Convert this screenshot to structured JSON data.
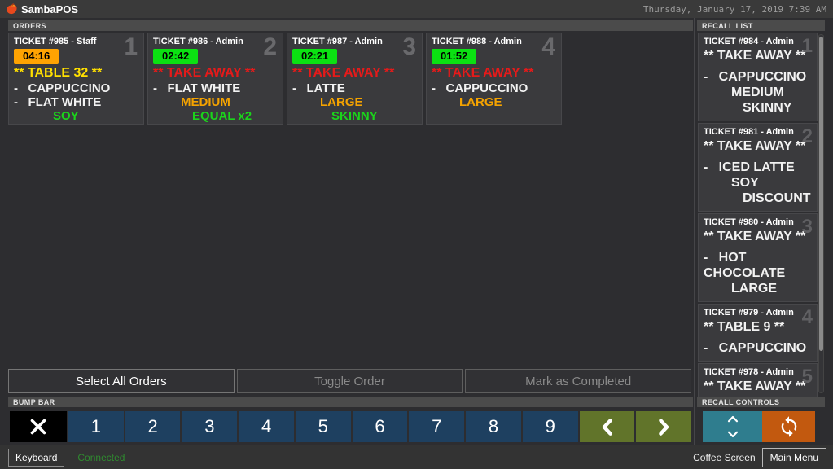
{
  "app": {
    "title": "SambaPOS",
    "datetime": "Thursday, January 17, 2019 7:39 AM"
  },
  "colors": {
    "white": "#F2F2F2",
    "yellow": "#FFDF00",
    "red": "#E51A1A",
    "orange": "#F5A300",
    "green": "#1BD41B",
    "timer_warn": "#FFA302",
    "timer_ok": "#0BE112",
    "bump_blue": "#1E4060",
    "bump_green": "#61742A",
    "recall_teal": "#2F7D8E",
    "recall_orange": "#C2590F"
  },
  "orders": {
    "header": "ORDERS",
    "tickets": [
      {
        "title": "TICKET #985 - Staff",
        "timer": "04:16",
        "timer_state": "warn",
        "number": "1",
        "lines": [
          {
            "text": "** TABLE 32 **",
            "type": "table",
            "color": "yellow"
          },
          {
            "text": "-   CAPPUCCINO",
            "type": "item",
            "color": "white"
          },
          {
            "text": "-   FLAT WHITE",
            "type": "item",
            "color": "white"
          },
          {
            "text": "SOY",
            "type": "tag2",
            "color": "green"
          }
        ]
      },
      {
        "title": "TICKET #986 - Admin",
        "timer": "02:42",
        "timer_state": "ok",
        "number": "2",
        "lines": [
          {
            "text": "** TAKE AWAY **",
            "type": "table",
            "color": "red"
          },
          {
            "text": "-   FLAT WHITE",
            "type": "item",
            "color": "white"
          },
          {
            "text": "MEDIUM",
            "type": "tag1",
            "color": "orange"
          },
          {
            "text": "EQUAL x2",
            "type": "tag2",
            "color": "green"
          }
        ]
      },
      {
        "title": "TICKET #987 - Admin",
        "timer": "02:21",
        "timer_state": "ok",
        "number": "3",
        "lines": [
          {
            "text": "** TAKE AWAY **",
            "type": "table",
            "color": "red"
          },
          {
            "text": "-   LATTE",
            "type": "item",
            "color": "white"
          },
          {
            "text": "LARGE",
            "type": "tag1",
            "color": "orange"
          },
          {
            "text": "SKINNY",
            "type": "tag2",
            "color": "green"
          }
        ]
      },
      {
        "title": "TICKET #988 - Admin",
        "timer": "01:52",
        "timer_state": "ok",
        "number": "4",
        "lines": [
          {
            "text": "** TAKE AWAY **",
            "type": "table",
            "color": "red"
          },
          {
            "text": "-   CAPPUCCINO",
            "type": "item",
            "color": "white"
          },
          {
            "text": "LARGE",
            "type": "tag1",
            "color": "orange"
          }
        ]
      }
    ],
    "actions": [
      {
        "label": "Select All Orders",
        "enabled": true
      },
      {
        "label": "Toggle Order",
        "enabled": false
      },
      {
        "label": "Mark as Completed",
        "enabled": false
      }
    ]
  },
  "recall": {
    "header": "RECALL LIST",
    "tickets": [
      {
        "title": "TICKET #984 - Admin",
        "number": "1",
        "lines": [
          {
            "text": "** TAKE AWAY **",
            "type": "table",
            "color": "white"
          },
          {
            "text": "-   CAPPUCCINO",
            "type": "item",
            "color": "white"
          },
          {
            "text": "MEDIUM",
            "type": "tag1",
            "color": "white"
          },
          {
            "text": "SKINNY",
            "type": "tag2",
            "color": "white"
          }
        ]
      },
      {
        "title": "TICKET #981 - Admin",
        "number": "2",
        "lines": [
          {
            "text": "** TAKE AWAY **",
            "type": "table",
            "color": "white"
          },
          {
            "text": "-   ICED LATTE",
            "type": "item",
            "color": "white"
          },
          {
            "text": "SOY",
            "type": "tag1",
            "color": "white"
          },
          {
            "text": "DISCOUNT",
            "type": "tag2",
            "color": "white"
          }
        ]
      },
      {
        "title": "TICKET #980 - Admin",
        "number": "3",
        "lines": [
          {
            "text": "** TAKE AWAY **",
            "type": "table",
            "color": "white"
          },
          {
            "text": "-   HOT CHOCOLATE",
            "type": "item",
            "color": "white"
          },
          {
            "text": "LARGE",
            "type": "tag1",
            "color": "white"
          }
        ]
      },
      {
        "title": "TICKET #979 - Admin",
        "number": "4",
        "lines": [
          {
            "text": "** TABLE 9 **",
            "type": "table",
            "color": "white"
          },
          {
            "text": "-   CAPPUCCINO",
            "type": "item",
            "color": "white"
          }
        ]
      },
      {
        "title": "TICKET #978 - Admin",
        "number": "5",
        "lines": [
          {
            "text": "** TAKE AWAY **",
            "type": "table",
            "color": "white"
          }
        ]
      }
    ]
  },
  "bump_bar": {
    "header": "BUMP BAR",
    "numbers": [
      "1",
      "2",
      "3",
      "4",
      "5",
      "6",
      "7",
      "8",
      "9"
    ]
  },
  "recall_controls": {
    "header": "RECALL CONTROLS"
  },
  "status_bar": {
    "keyboard": "Keyboard",
    "connection": "Connected",
    "screen": "Coffee Screen",
    "main_menu": "Main Menu"
  }
}
